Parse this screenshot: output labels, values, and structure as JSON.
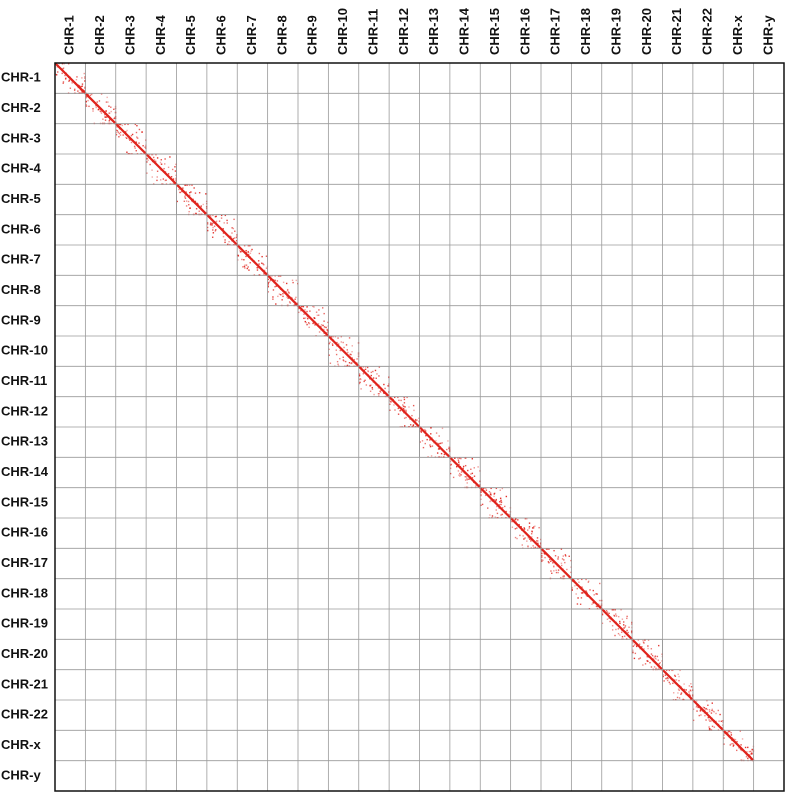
{
  "chart_data": {
    "type": "heatmap",
    "x_categories": [
      "CHR-1",
      "CHR-2",
      "CHR-3",
      "CHR-4",
      "CHR-5",
      "CHR-6",
      "CHR-7",
      "CHR-8",
      "CHR-9",
      "CHR-10",
      "CHR-11",
      "CHR-12",
      "CHR-13",
      "CHR-14",
      "CHR-15",
      "CHR-16",
      "CHR-17",
      "CHR-18",
      "CHR-19",
      "CHR-20",
      "CHR-21",
      "CHR-22",
      "CHR-x",
      "CHR-y"
    ],
    "y_categories": [
      "CHR-1",
      "CHR-2",
      "CHR-3",
      "CHR-4",
      "CHR-5",
      "CHR-6",
      "CHR-7",
      "CHR-8",
      "CHR-9",
      "CHR-10",
      "CHR-11",
      "CHR-12",
      "CHR-13",
      "CHR-14",
      "CHR-15",
      "CHR-16",
      "CHR-17",
      "CHR-18",
      "CHR-19",
      "CHR-20",
      "CHR-21",
      "CHR-22",
      "CHR-x",
      "CHR-y"
    ],
    "color": "#e0231c"
  }
}
